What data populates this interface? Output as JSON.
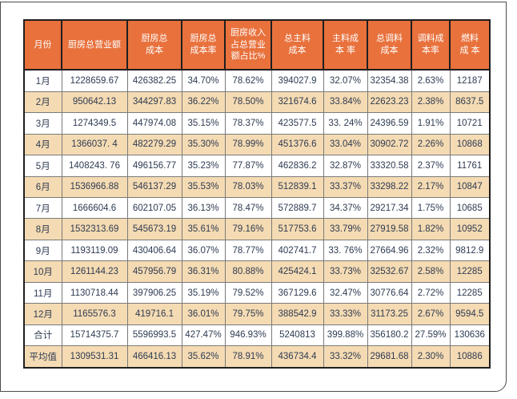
{
  "frame": {
    "border_color": "#4b4b4b"
  },
  "chart_data": {
    "type": "table",
    "title": "",
    "columns": [
      "月份",
      "厨房总营业额",
      "厨房总成本",
      "厨房总成本率",
      "厨房收入占总营业额占比%",
      "总主料成本",
      "主料成本率",
      "总调料成本",
      "调料成本率",
      "燃料成本"
    ],
    "column_display": [
      "月份",
      "厨房总营业额",
      "厨房总\n成本",
      "厨房总\n成本率",
      "厨房收入\n占总营业\n额占比%",
      "总主料\n成本",
      "主料成\n本 率",
      "总调料\n成本",
      "调料成\n本率",
      "燃料\n成 本"
    ],
    "rows": [
      {
        "label": "1月",
        "values": [
          "1228659.67",
          "426382.25",
          "34.70%",
          "78.62%",
          "394027.9",
          "32.07%",
          "32354.38",
          "2.63%",
          "12187"
        ]
      },
      {
        "label": "2月",
        "values": [
          "950642.13",
          "344297.83",
          "36.22%",
          "78.50%",
          "321674.6",
          "33.84%",
          "22623.23",
          "2.38%",
          "8637.5"
        ]
      },
      {
        "label": "3月",
        "values": [
          "1274349.5",
          "447974.08",
          "35.15%",
          "78.37%",
          "423577.5",
          "33. 24%",
          "24396.59",
          "1.91%",
          "10721"
        ]
      },
      {
        "label": "4月",
        "values": [
          "1366037. 4",
          "482279.29",
          "35.30%",
          "78.99%",
          "451376.6",
          "33.04%",
          "30902.72",
          "2.26%",
          "10868"
        ]
      },
      {
        "label": "5月",
        "values": [
          "1408243. 76",
          "496156.77",
          "35.23%",
          "77.87%",
          "462836.2",
          "32.87%",
          "33320.58",
          "2.37%",
          "11761"
        ]
      },
      {
        "label": "6月",
        "values": [
          "1536966.88",
          "546137.29",
          "35.53%",
          "78.03%",
          "512839.1",
          "33.37%",
          "33298.22",
          "2.17%",
          "10847"
        ]
      },
      {
        "label": "7月",
        "values": [
          "1666604.6",
          "602107.05",
          "36.13%",
          "78.47%",
          "572889.7",
          "34.37%",
          "29217.34",
          "1.75%",
          "10685"
        ]
      },
      {
        "label": "8月",
        "values": [
          "1532313.69",
          "545673.19",
          "35.61%",
          "79.16%",
          "517753.6",
          "33.79%",
          "27919.58",
          "1.82%",
          "10952"
        ]
      },
      {
        "label": "9月",
        "values": [
          "1193119.09",
          "430406.64",
          "36.07%",
          "78.77%",
          "402741.7",
          "33. 76%",
          "27664.96",
          "2.32%",
          "9812.9"
        ]
      },
      {
        "label": "10月",
        "values": [
          "1261144.23",
          "457956.79",
          "36.31%",
          "80.88%",
          "425424.1",
          "33.73%",
          "32532.67",
          "2.58%",
          "12285"
        ]
      },
      {
        "label": "11月",
        "values": [
          "1130718.44",
          "397906.25",
          "35.19%",
          "79.52%",
          "367129.6",
          "32.47%",
          "30776.64",
          "2.72%",
          "12285"
        ]
      },
      {
        "label": "12月",
        "values": [
          "1165576.3",
          "419716.1",
          "36.01%",
          "79.75%",
          "388542.9",
          "33.33%",
          "31173.25",
          "2.67%",
          "9594.5"
        ]
      },
      {
        "label": "合计",
        "values": [
          "15714375.7",
          "5596993.5",
          "427.47%",
          "946.93%",
          "5240813",
          "399.88%",
          "356180.2",
          "27.59%",
          "130636"
        ]
      },
      {
        "label": "平均值",
        "values": [
          "1309531.31",
          "466416.13",
          "35.62%",
          "78.91%",
          "436734.4",
          "33.32%",
          "29681.68",
          "2.30%",
          "10886"
        ]
      }
    ],
    "colors": {
      "header_bg": "#E8713C",
      "header_text": "#FFFFFF",
      "row_alt_bg": "#F5DBB3",
      "row_bg": "#FFFFFF",
      "outer_border": "#1F1F1F",
      "inner_border": "#7A7A7A",
      "cell_text": "#2E3B52"
    },
    "layout_hints": {
      "grid": true,
      "zebra_striping": "even data rows shaded",
      "summary_rows": [
        "合计",
        "平均值"
      ]
    }
  }
}
